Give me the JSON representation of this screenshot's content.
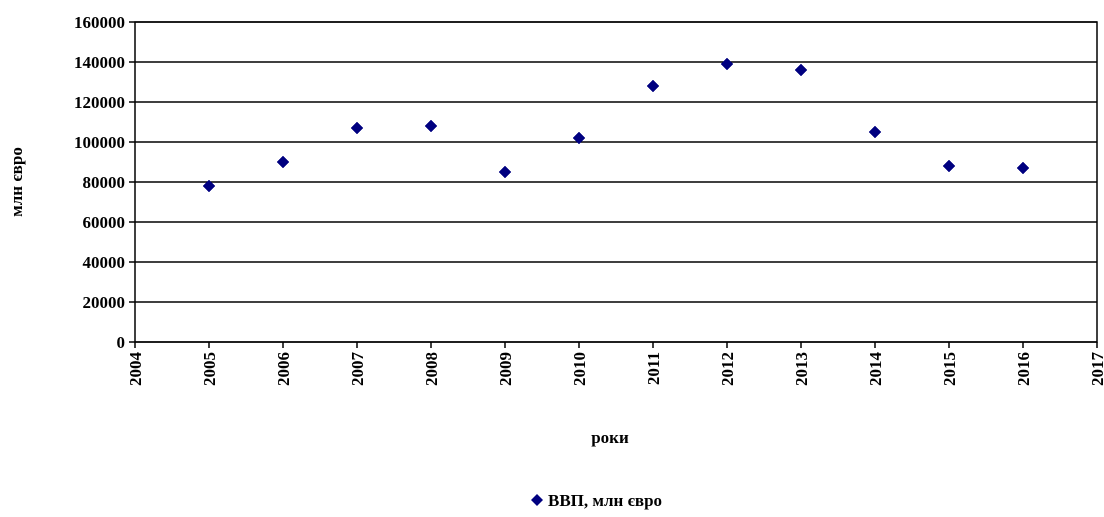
{
  "chart_data": {
    "type": "scatter",
    "title": "",
    "xlabel": "роки",
    "ylabel": "млн євро",
    "xlim": [
      2004,
      2017
    ],
    "ylim": [
      0,
      160000
    ],
    "x_ticks": [
      "2004",
      "2005",
      "2006",
      "2007",
      "2008",
      "2009",
      "2010",
      "2011",
      "2012",
      "2013",
      "2014",
      "2015",
      "2016",
      "2017"
    ],
    "y_ticks": [
      "0",
      "20000",
      "40000",
      "60000",
      "80000",
      "100000",
      "120000",
      "140000",
      "160000"
    ],
    "grid": "horizontal",
    "legend_position": "bottom",
    "series": [
      {
        "name": "ВВП, млн євро",
        "color": "#000080",
        "marker": "diamond",
        "x": [
          2005,
          2006,
          2007,
          2008,
          2009,
          2010,
          2011,
          2012,
          2013,
          2014,
          2015,
          2016
        ],
        "y": [
          78000,
          90000,
          107000,
          108000,
          85000,
          102000,
          128000,
          139000,
          136000,
          105000,
          88000,
          87000
        ]
      }
    ]
  }
}
